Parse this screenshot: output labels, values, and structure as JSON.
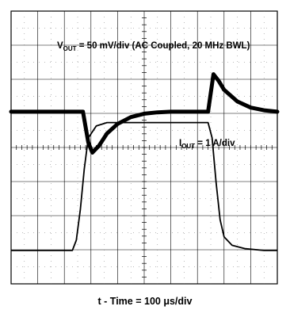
{
  "chart_data": {
    "type": "line",
    "title": "",
    "xlabel": "t - Time = 100 μs/div",
    "x_unit": "μs",
    "xlim": [
      0,
      1000
    ],
    "x_divisions": 10,
    "y_divisions": 8,
    "grid": true,
    "series": [
      {
        "name": "V_OUT",
        "annotation": "V<sub>OUT</sub> = 50 mV/div (AC Coupled, 20 MHz BWL)",
        "label_main": "V",
        "label_sub": "OUT",
        "label_rest": " = 50 mV/div (AC Coupled, 20 MHz BWL)",
        "scale": "50 mV/div",
        "y_unit": "mV",
        "x": [
          0,
          100,
          200,
          270,
          290,
          305,
          330,
          360,
          400,
          450,
          500,
          550,
          600,
          650,
          690,
          740,
          760,
          780,
          800,
          850,
          900,
          950,
          1000
        ],
        "y": [
          0,
          0,
          0,
          0,
          -45,
          -60,
          -50,
          -32,
          -18,
          -8,
          -3,
          -1,
          0,
          0,
          0,
          0,
          55,
          45,
          32,
          15,
          6,
          2,
          0
        ]
      },
      {
        "name": "I_OUT",
        "annotation": "I<sub>OUT</sub> = 1 A/div",
        "label_main": "I",
        "label_sub": "OUT",
        "label_rest": " = 1 A/div",
        "scale": "1 A/div",
        "y_unit": "A",
        "x": [
          0,
          100,
          200,
          230,
          245,
          260,
          275,
          290,
          320,
          360,
          400,
          500,
          600,
          700,
          740,
          755,
          770,
          785,
          800,
          830,
          880,
          950,
          1000
        ],
        "y": [
          0,
          0,
          0,
          0,
          0.3,
          1.2,
          2.4,
          3.3,
          3.65,
          3.75,
          3.75,
          3.75,
          3.75,
          3.75,
          3.75,
          3.3,
          2.0,
          0.9,
          0.4,
          0.15,
          0.05,
          0,
          0
        ]
      }
    ]
  }
}
